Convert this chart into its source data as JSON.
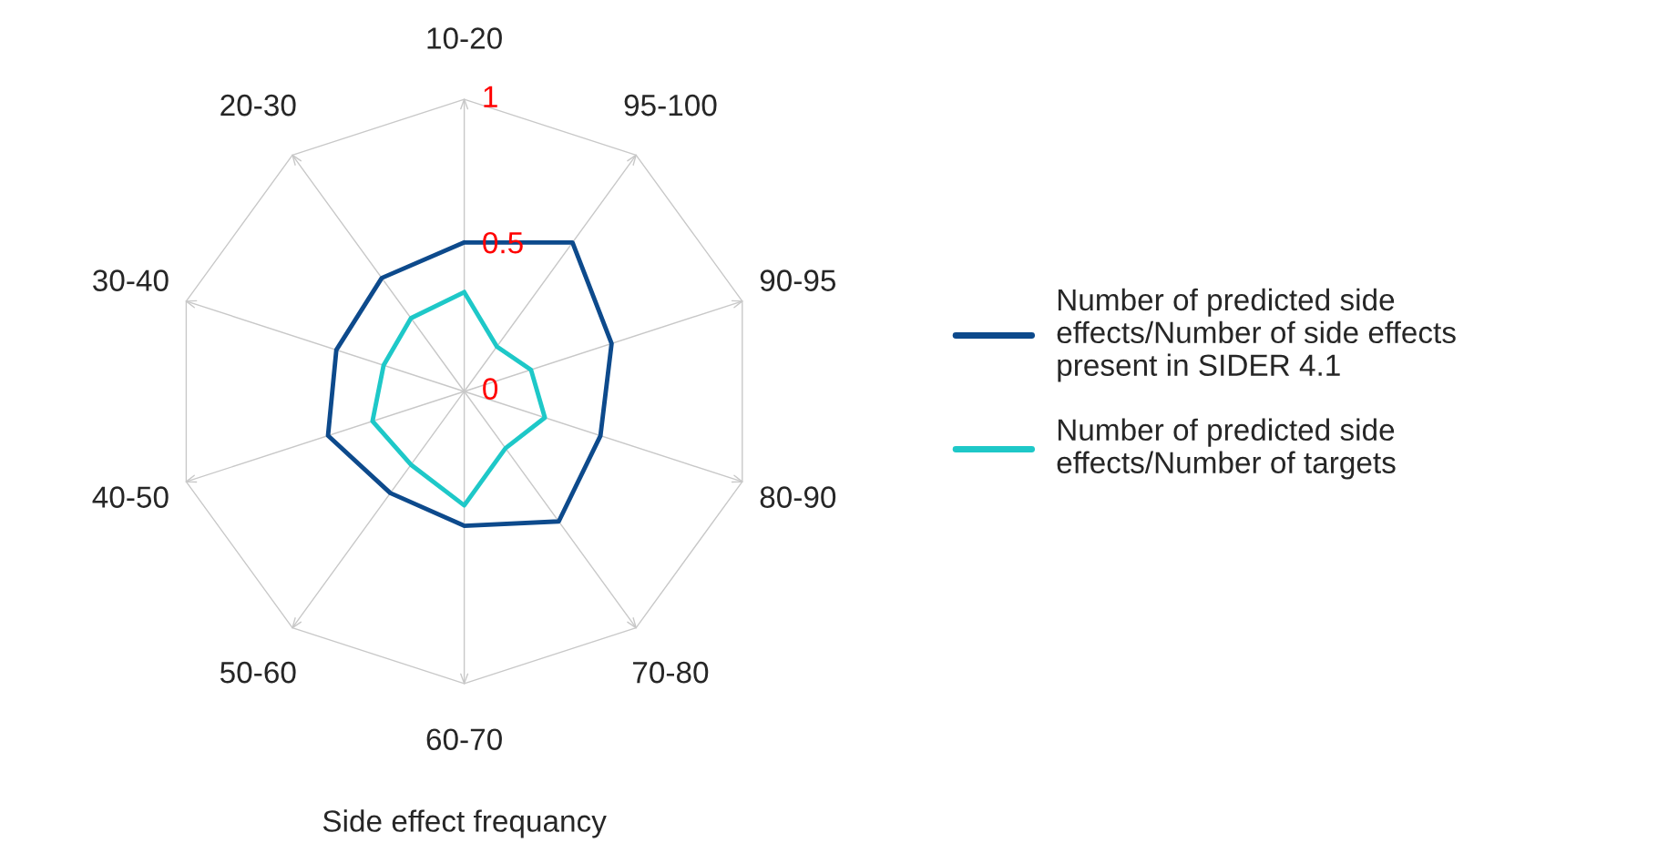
{
  "chart_data": {
    "type": "radar",
    "xlabel": "Side effect frequancy",
    "categories": [
      "10-20",
      "95-100",
      "90-95",
      "80-90",
      "70-80",
      "60-70",
      "50-60",
      "40-50",
      "30-40",
      "20-30"
    ],
    "series": [
      {
        "name": "Number of predicted side effects/Number of side effects present in SIDER 4.1",
        "color": "#0d4a8c",
        "values": [
          0.51,
          0.63,
          0.53,
          0.49,
          0.55,
          0.46,
          0.43,
          0.49,
          0.46,
          0.48
        ]
      },
      {
        "name": "Number of predicted side effects/Number of targets",
        "color": "#1ec8c8",
        "values": [
          0.34,
          0.19,
          0.24,
          0.29,
          0.24,
          0.39,
          0.31,
          0.33,
          0.29,
          0.31
        ]
      }
    ],
    "ylim": [
      0,
      1
    ],
    "yticks": [
      0,
      0.5,
      1
    ],
    "grid": true,
    "legend": "right"
  }
}
